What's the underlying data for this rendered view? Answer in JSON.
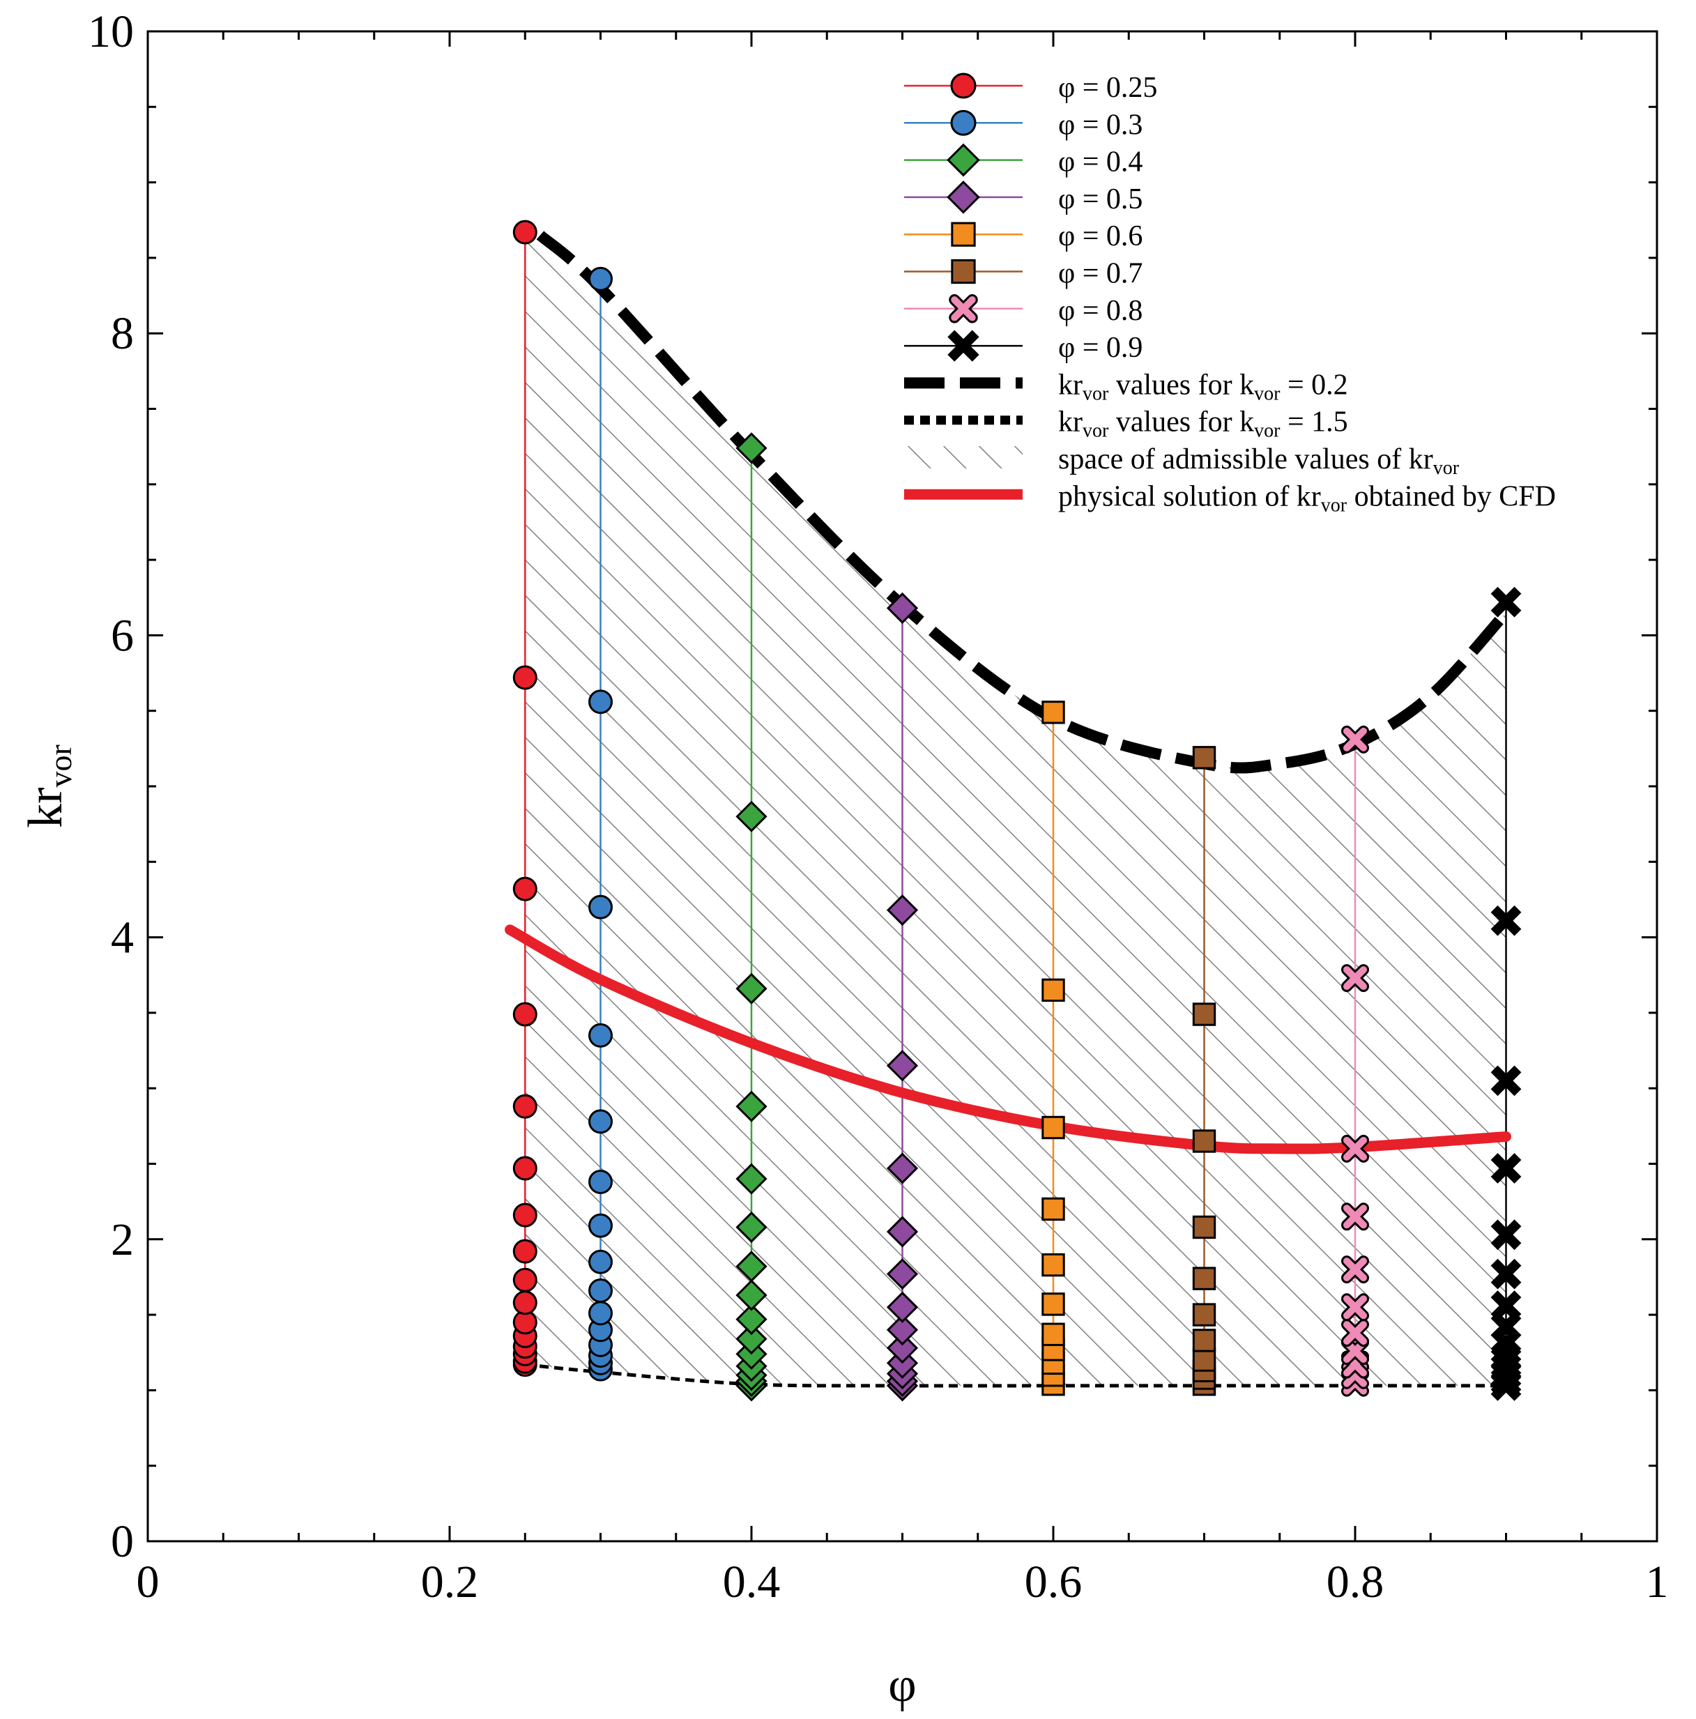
{
  "chart_data": {
    "type": "scatter",
    "xlabel": "φ",
    "ylabel_main": "kr",
    "ylabel_sub": "vor",
    "xlim": [
      0,
      1
    ],
    "ylim": [
      0,
      10
    ],
    "x_ticks": [
      0,
      0.2,
      0.4,
      0.6,
      0.8,
      1
    ],
    "x_tick_labels": [
      "0",
      "0.2",
      "0.4",
      "0.6",
      "0.8",
      "1"
    ],
    "y_ticks": [
      0,
      2,
      4,
      6,
      8,
      10
    ],
    "y_tick_labels": [
      "0",
      "2",
      "4",
      "6",
      "8",
      "10"
    ],
    "series": [
      {
        "name": "φ = 0.25",
        "phi": 0.25,
        "color": "#e8202a",
        "marker": "circle",
        "values": [
          8.67,
          5.72,
          4.32,
          3.49,
          2.88,
          2.47,
          2.16,
          1.92,
          1.73,
          1.58,
          1.45,
          1.36,
          1.29,
          1.24,
          1.19,
          1.17
        ]
      },
      {
        "name": "φ = 0.3",
        "phi": 0.3,
        "color": "#3a7fc4",
        "marker": "circle",
        "values": [
          8.36,
          5.56,
          4.2,
          3.35,
          2.78,
          2.38,
          2.09,
          1.85,
          1.66,
          1.51,
          1.4,
          1.3,
          1.23,
          1.18,
          1.14
        ]
      },
      {
        "name": "φ = 0.4",
        "phi": 0.4,
        "color": "#3aa53e",
        "marker": "diamond",
        "values": [
          7.24,
          4.8,
          3.66,
          2.88,
          2.4,
          2.08,
          1.82,
          1.63,
          1.47,
          1.34,
          1.24,
          1.16,
          1.1,
          1.06,
          1.03
        ]
      },
      {
        "name": "φ = 0.5",
        "phi": 0.5,
        "color": "#8e4a9e",
        "marker": "diamond",
        "values": [
          6.18,
          4.18,
          3.15,
          2.47,
          2.05,
          1.77,
          1.55,
          1.4,
          1.28,
          1.18,
          1.11,
          1.06,
          1.03
        ]
      },
      {
        "name": "φ = 0.6",
        "phi": 0.6,
        "color": "#f28c1e",
        "marker": "square",
        "values": [
          5.49,
          3.65,
          2.74,
          2.2,
          1.83,
          1.57,
          1.37,
          1.27,
          1.18,
          1.1,
          1.04
        ]
      },
      {
        "name": "φ = 0.7",
        "phi": 0.7,
        "color": "#9b5a2a",
        "marker": "square",
        "values": [
          5.19,
          3.49,
          2.65,
          2.08,
          1.74,
          1.5,
          1.33,
          1.2,
          1.13,
          1.08,
          1.04
        ]
      },
      {
        "name": "φ = 0.8",
        "phi": 0.8,
        "color": "#ef8ab7",
        "marker": "x",
        "values": [
          5.31,
          3.73,
          2.6,
          2.15,
          1.8,
          1.55,
          1.38,
          1.26,
          1.17,
          1.1,
          1.05
        ]
      },
      {
        "name": "φ = 0.9",
        "phi": 0.9,
        "color": "#000000",
        "marker": "x",
        "values": [
          6.22,
          4.11,
          3.05,
          2.47,
          2.03,
          1.77,
          1.56,
          1.42,
          1.31,
          1.22,
          1.15,
          1.1,
          1.06,
          1.03
        ]
      }
    ],
    "upper_curve": {
      "x": [
        0.26,
        0.3,
        0.4,
        0.5,
        0.6,
        0.7,
        0.75,
        0.8,
        0.85,
        0.9
      ],
      "y": [
        8.65,
        8.3,
        7.2,
        6.2,
        5.45,
        5.15,
        5.15,
        5.28,
        5.6,
        6.15
      ]
    },
    "lower_curve": {
      "x": [
        0.25,
        0.3,
        0.4,
        0.5,
        0.6,
        0.7,
        0.8,
        0.9
      ],
      "y": [
        1.17,
        1.12,
        1.04,
        1.03,
        1.03,
        1.03,
        1.03,
        1.03
      ]
    },
    "cfd_curve": {
      "x": [
        0.24,
        0.3,
        0.4,
        0.5,
        0.6,
        0.7,
        0.75,
        0.8,
        0.9
      ],
      "y": [
        4.05,
        3.72,
        3.3,
        2.97,
        2.75,
        2.62,
        2.6,
        2.61,
        2.68
      ]
    },
    "legend_position": "top-right",
    "legend": [
      {
        "kind": "series",
        "index": 0,
        "label": "φ = 0.25"
      },
      {
        "kind": "series",
        "index": 1,
        "label": "φ = 0.3"
      },
      {
        "kind": "series",
        "index": 2,
        "label": "φ = 0.4"
      },
      {
        "kind": "series",
        "index": 3,
        "label": "φ = 0.5"
      },
      {
        "kind": "series",
        "index": 4,
        "label": "φ = 0.6"
      },
      {
        "kind": "series",
        "index": 5,
        "label": "φ = 0.7"
      },
      {
        "kind": "series",
        "index": 6,
        "label": "φ = 0.8"
      },
      {
        "kind": "series",
        "index": 7,
        "label": "φ = 0.9"
      },
      {
        "kind": "dashed",
        "parts": [
          {
            "t": "kr"
          },
          {
            "t": "vor",
            "sub": true
          },
          {
            "t": " values for k"
          },
          {
            "t": "vor",
            "sub": true
          },
          {
            "t": " = 0.2"
          }
        ]
      },
      {
        "kind": "dotted",
        "parts": [
          {
            "t": "kr"
          },
          {
            "t": "vor",
            "sub": true
          },
          {
            "t": " values for k"
          },
          {
            "t": "vor",
            "sub": true
          },
          {
            "t": " = 1.5"
          }
        ]
      },
      {
        "kind": "hatch",
        "parts": [
          {
            "t": "space of admissible values of kr"
          },
          {
            "t": "vor",
            "sub": true
          }
        ]
      },
      {
        "kind": "cfd",
        "parts": [
          {
            "t": "physical solution of kr"
          },
          {
            "t": "vor",
            "sub": true
          },
          {
            "t": " obtained by CFD"
          }
        ]
      }
    ],
    "colors": {
      "cfd": "#e8202a",
      "hatch": "#808080",
      "axis": "#000000"
    }
  }
}
